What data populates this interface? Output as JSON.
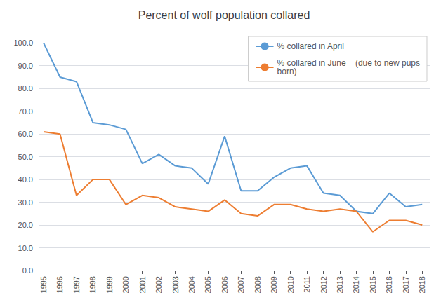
{
  "chart_data": {
    "type": "line",
    "title": "Percent of wolf population collared",
    "x": [
      1995,
      1996,
      1997,
      1998,
      1999,
      2000,
      2001,
      2002,
      2003,
      2004,
      2005,
      2006,
      2007,
      2008,
      2009,
      2010,
      2011,
      2012,
      2013,
      2014,
      2015,
      2016,
      2017,
      2018
    ],
    "series": [
      {
        "name": "% collared in April",
        "color": "#5b9bd5",
        "values": [
          100.0,
          85.0,
          83.0,
          65.0,
          64.0,
          62.0,
          47.0,
          51.0,
          46.0,
          45.0,
          38.0,
          59.0,
          35.0,
          35.0,
          41.0,
          45.0,
          46.0,
          34.0,
          33.0,
          26.0,
          25.0,
          34.0,
          28.0,
          29.0
        ]
      },
      {
        "name": "% collared in June    (due to new pups\nborn)",
        "color": "#ed7d31",
        "values": [
          61.0,
          60.0,
          33.0,
          40.0,
          40.0,
          29.0,
          33.0,
          32.0,
          28.0,
          27.0,
          26.0,
          31.0,
          25.0,
          24.0,
          29.0,
          29.0,
          27.0,
          26.0,
          27.0,
          26.0,
          17.0,
          22.0,
          22.0,
          20.0
        ]
      }
    ],
    "xlim": [
      1994.7,
      2018.5
    ],
    "xticks": [
      1995,
      1996,
      1997,
      1998,
      1999,
      2000,
      2001,
      2002,
      2003,
      2004,
      2005,
      2006,
      2007,
      2008,
      2009,
      2010,
      2011,
      2012,
      2013,
      2014,
      2015,
      2016,
      2017,
      2018
    ],
    "ylim": [
      0.0,
      105.0
    ],
    "yticks": [
      {
        "value": 0,
        "label": "0.0"
      },
      {
        "value": 10,
        "label": "10.0"
      },
      {
        "value": 20,
        "label": "20.0"
      },
      {
        "value": 30,
        "label": "30.0"
      },
      {
        "value": 40,
        "label": "40.0"
      },
      {
        "value": 50,
        "label": "50.0"
      },
      {
        "value": 60,
        "label": "60.0"
      },
      {
        "value": 70,
        "label": "70.0"
      },
      {
        "value": 80,
        "label": "80.0"
      },
      {
        "value": 90,
        "label": "90.0"
      },
      {
        "value": 100,
        "label": "100.0"
      }
    ],
    "grid": true,
    "legend": "upper right"
  }
}
